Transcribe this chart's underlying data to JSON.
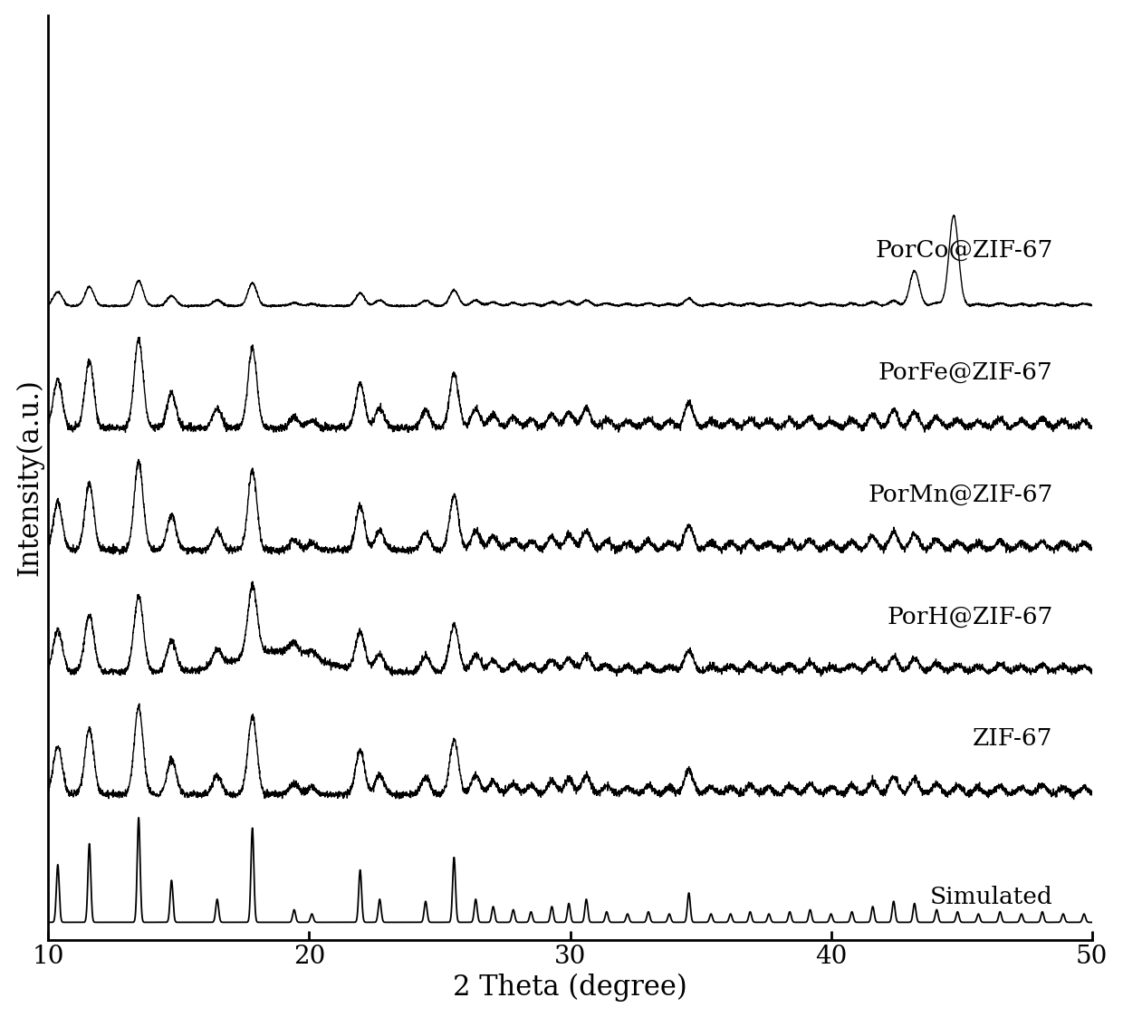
{
  "xlabel": "2 Theta (degree)",
  "ylabel": "Intensity(a.u.)",
  "xlim": [
    10,
    50
  ],
  "ylim": [
    -0.15,
    7.8
  ],
  "labels": [
    "Simulated",
    "ZIF-67",
    "PorH@ZIF-67",
    "PorMn@ZIF-67",
    "PorFe@ZIF-67",
    "PorCo@ZIF-67"
  ],
  "offsets": [
    0.0,
    1.1,
    2.15,
    3.2,
    4.25,
    5.3
  ],
  "background_color": "#ffffff",
  "line_color": "#000000",
  "axis_label_fontsize": 22,
  "tick_fontsize": 20,
  "annotation_fontsize": 19,
  "zif67_simulated_peaks": [
    [
      10.36,
      0.55
    ],
    [
      11.57,
      0.75
    ],
    [
      13.46,
      1.0
    ],
    [
      14.72,
      0.4
    ],
    [
      16.47,
      0.22
    ],
    [
      17.82,
      0.9
    ],
    [
      19.42,
      0.12
    ],
    [
      20.1,
      0.08
    ],
    [
      21.95,
      0.5
    ],
    [
      22.7,
      0.22
    ],
    [
      24.46,
      0.2
    ],
    [
      25.55,
      0.62
    ],
    [
      26.38,
      0.22
    ],
    [
      27.05,
      0.15
    ],
    [
      27.82,
      0.12
    ],
    [
      28.5,
      0.1
    ],
    [
      29.3,
      0.15
    ],
    [
      29.95,
      0.18
    ],
    [
      30.62,
      0.22
    ],
    [
      31.4,
      0.1
    ],
    [
      32.2,
      0.08
    ],
    [
      33.0,
      0.1
    ],
    [
      33.8,
      0.08
    ],
    [
      34.55,
      0.28
    ],
    [
      35.4,
      0.08
    ],
    [
      36.15,
      0.08
    ],
    [
      36.9,
      0.1
    ],
    [
      37.62,
      0.08
    ],
    [
      38.42,
      0.1
    ],
    [
      39.2,
      0.12
    ],
    [
      40.0,
      0.08
    ],
    [
      40.8,
      0.1
    ],
    [
      41.6,
      0.15
    ],
    [
      42.4,
      0.2
    ],
    [
      43.2,
      0.18
    ],
    [
      44.05,
      0.12
    ],
    [
      44.85,
      0.1
    ],
    [
      45.65,
      0.08
    ],
    [
      46.48,
      0.1
    ],
    [
      47.3,
      0.08
    ],
    [
      48.1,
      0.1
    ],
    [
      48.9,
      0.08
    ],
    [
      49.7,
      0.08
    ]
  ],
  "porco_extra_peak": [
    44.7,
    3.5
  ],
  "porco_extra_peak2": [
    43.2,
    1.2
  ]
}
